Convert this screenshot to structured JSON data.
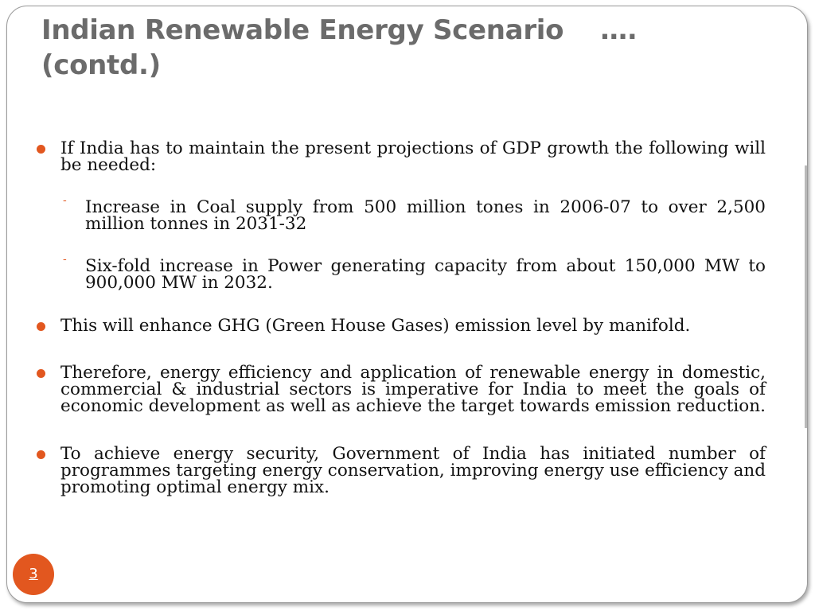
{
  "slide": {
    "title": "Indian Renewable Energy Scenario",
    "title_dots": "….",
    "title_suffix": "(contd.)",
    "bullets": [
      {
        "text": "If India has to maintain the present projections of GDP growth the following will be needed:",
        "sub": [
          "Increase in Coal supply from 500 million tones in 2006-07 to over 2,500 million tonnes in 2031-32",
          "Six-fold increase in Power generating capacity from about 150,000 MW to 900,000 MW in 2032."
        ]
      },
      {
        "text": "This will enhance GHG (Green House Gases) emission level by manifold."
      },
      {
        "text": "Therefore, energy efficiency and application of renewable energy in domestic, commercial & industrial sectors is imperative for India to meet the goals of economic development as well as achieve the target towards emission reduction."
      },
      {
        "text": "To achieve energy security, Government of India has initiated number of programmes targeting energy conservation, improving energy use efficiency and promoting optimal energy mix."
      }
    ],
    "page_number": "3"
  },
  "colors": {
    "accent": "#e2571f",
    "title": "#6b6b6b",
    "body_text": "#111111",
    "frame_border": "#9a9a9a"
  }
}
